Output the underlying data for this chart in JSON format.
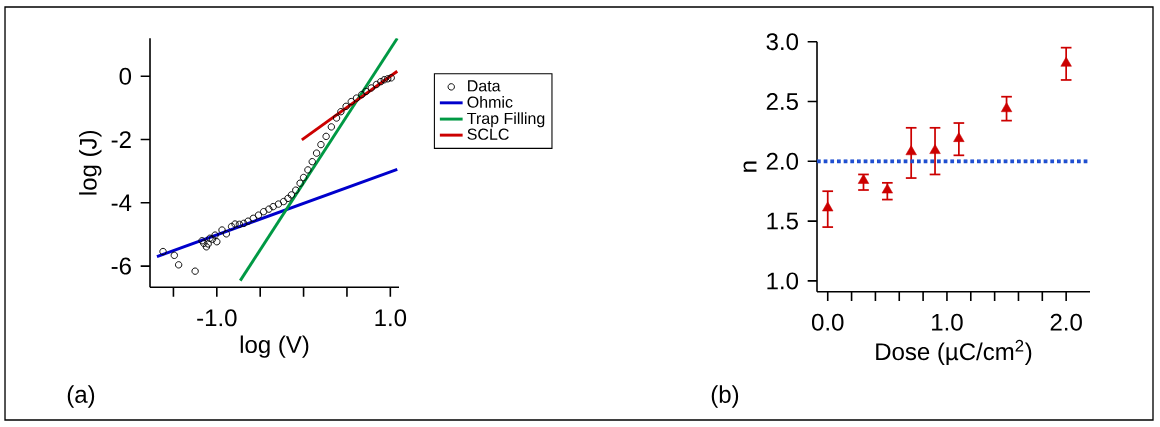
{
  "chart_data": [
    {
      "type": "scatter",
      "xlabel": "log (V)",
      "ylabel": "log (J)",
      "xlim": [
        -1.77,
        1.1
      ],
      "ylim": [
        -6.67,
        1.2
      ],
      "xticks": [
        {
          "value": -1.5,
          "label": null
        },
        {
          "value": -1,
          "label": "-1.0"
        },
        {
          "value": -0.5,
          "label": null
        },
        {
          "value": 0,
          "label": null
        },
        {
          "value": 0.5,
          "label": null
        },
        {
          "value": 1,
          "label": "1.0"
        }
      ],
      "yticks": [
        -6,
        -4,
        -2,
        0
      ],
      "legend": "right",
      "series": [
        {
          "name": "Data",
          "marker": "circle",
          "color": "#000000",
          "x": [
            -1.62,
            -1.49,
            -1.44,
            -1.25,
            -1.17,
            -1.15,
            -1.12,
            -1.1,
            -1.08,
            -1.05,
            -1.02,
            -1.0,
            -0.94,
            -0.89,
            -0.83,
            -0.79,
            -0.74,
            -0.69,
            -0.64,
            -0.58,
            -0.52,
            -0.46,
            -0.4,
            -0.35,
            -0.29,
            -0.23,
            -0.18,
            -0.14,
            -0.09,
            -0.04,
            0.0,
            0.05,
            0.1,
            0.15,
            0.2,
            0.26,
            0.32,
            0.38,
            0.43,
            0.49,
            0.55,
            0.61,
            0.67,
            0.72,
            0.78,
            0.84,
            0.89,
            0.93,
            0.97,
            1.01
          ],
          "values": [
            -5.54,
            -5.66,
            -5.96,
            -6.16,
            -5.2,
            -5.28,
            -5.39,
            -5.3,
            -5.12,
            -5.15,
            -5.02,
            -5.23,
            -4.86,
            -4.98,
            -4.75,
            -4.67,
            -4.68,
            -4.65,
            -4.58,
            -4.49,
            -4.39,
            -4.28,
            -4.2,
            -4.12,
            -4.04,
            -3.96,
            -3.86,
            -3.75,
            -3.6,
            -3.38,
            -3.2,
            -2.96,
            -2.7,
            -2.43,
            -2.16,
            -1.9,
            -1.6,
            -1.32,
            -1.12,
            -0.95,
            -0.8,
            -0.69,
            -0.58,
            -0.48,
            -0.37,
            -0.26,
            -0.17,
            -0.11,
            -0.08,
            -0.05
          ]
        },
        {
          "name": "Ohmic",
          "type": "line",
          "color": "#0000cc",
          "x": [
            -1.69,
            1.08
          ],
          "values": [
            -5.7,
            -2.94
          ]
        },
        {
          "name": "Trap Filling",
          "type": "line",
          "color": "#009944",
          "x": [
            -0.73,
            1.08
          ],
          "values": [
            -6.46,
            1.2
          ]
        },
        {
          "name": "SCLC",
          "type": "line",
          "color": "#cc0000",
          "x": [
            -0.02,
            1.08
          ],
          "values": [
            -2.01,
            0.16
          ]
        }
      ],
      "annotations": [
        "(a)"
      ]
    },
    {
      "type": "scatter",
      "xlabel": "Dose (µC/cm$^{2}$)",
      "ylabel": "n",
      "xlim": [
        -0.09,
        2.2
      ],
      "ylim": [
        0.91,
        3.0
      ],
      "xticks": [
        {
          "value": 0,
          "label": "0.0"
        },
        {
          "value": 0.2,
          "label": null
        },
        {
          "value": 0.4,
          "label": null
        },
        {
          "value": 0.6,
          "label": null
        },
        {
          "value": 0.8,
          "label": null
        },
        {
          "value": 1,
          "label": "1.0"
        },
        {
          "value": 1.2,
          "label": null
        },
        {
          "value": 1.4,
          "label": null
        },
        {
          "value": 1.6,
          "label": null
        },
        {
          "value": 1.8,
          "label": null
        },
        {
          "value": 2,
          "label": "2.0"
        }
      ],
      "yticks": [
        {
          "value": 1,
          "label": "1.0"
        },
        {
          "value": 1.5,
          "label": "1.5"
        },
        {
          "value": 2,
          "label": "2.0"
        },
        {
          "value": 2.5,
          "label": "2.5"
        },
        {
          "value": 3,
          "label": "3.0"
        }
      ],
      "series": [
        {
          "marker": "triangle",
          "color": "#cc0000",
          "x": [
            0,
            0.3,
            0.5,
            0.7,
            0.9,
            1.1,
            1.5,
            2.0
          ],
          "values": [
            1.61,
            1.84,
            1.76,
            2.08,
            2.09,
            2.19,
            2.44,
            2.82
          ],
          "errors": [
            [
              1.45,
              1.75
            ],
            [
              1.76,
              1.89
            ],
            [
              1.68,
              1.82
            ],
            [
              1.86,
              2.28
            ],
            [
              1.89,
              2.28
            ],
            [
              2.05,
              2.32
            ],
            [
              2.34,
              2.54
            ],
            [
              2.68,
              2.95
            ]
          ]
        }
      ],
      "ref_lines": [
        {
          "axis": "y",
          "value": 2.0,
          "color": "#1f4fd0",
          "line_style": "dotted"
        }
      ],
      "annotations": [
        "(b)"
      ]
    }
  ]
}
